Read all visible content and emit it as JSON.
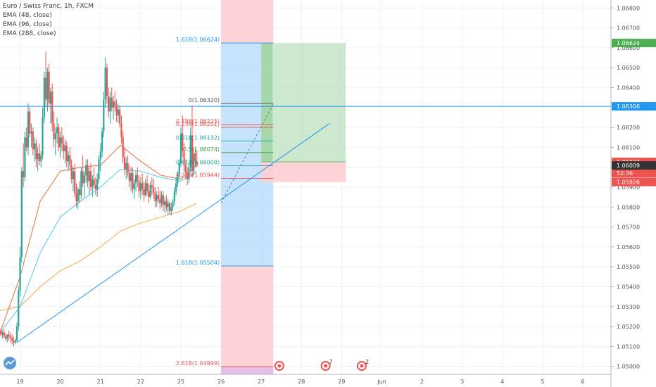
{
  "legend": {
    "symbol": "Euro / Swiss Franc, 1h, FXCM",
    "ema1": "EMA (48, close)",
    "ema2": "EMA (96, close)",
    "ema3": "EMA (288, close)"
  },
  "colors": {
    "up": "#26a69a",
    "down": "#ef5350",
    "ema48": "#f26b38",
    "ema96": "#4dd0e1",
    "ema288": "#f7a94b",
    "trend": "#2196f3",
    "fib_blue": "#bbdefb",
    "fib_red": "#ffcdd2",
    "green_zone": "#c8e6c9"
  },
  "chart_data": {
    "type": "candlestick",
    "title": "Euro / Swiss Franc, 1h, FXCM",
    "ylim": [
      1.0496,
      1.0684
    ],
    "x_range": [
      0,
      15.2
    ],
    "x_ticks": [
      {
        "x": 0.5,
        "label": "19"
      },
      {
        "x": 1.5,
        "label": "20"
      },
      {
        "x": 2.5,
        "label": "21"
      },
      {
        "x": 3.5,
        "label": "22"
      },
      {
        "x": 4.5,
        "label": "25"
      },
      {
        "x": 5.5,
        "label": "26"
      },
      {
        "x": 6.5,
        "label": "27"
      },
      {
        "x": 7.5,
        "label": "28"
      },
      {
        "x": 8.5,
        "label": "29"
      },
      {
        "x": 9.5,
        "label": "Jun"
      },
      {
        "x": 10.5,
        "label": "2"
      },
      {
        "x": 11.5,
        "label": "3"
      },
      {
        "x": 12.5,
        "label": "4"
      },
      {
        "x": 13.5,
        "label": "5"
      },
      {
        "x": 14.5,
        "label": "6"
      }
    ],
    "y_ticks": [
      "1.06800",
      "1.06700",
      "1.06600",
      "1.06500",
      "1.06400",
      "1.06200",
      "1.06100",
      "1.06000",
      "1.05900",
      "1.05800",
      "1.05700",
      "1.05600",
      "1.05500",
      "1.05400",
      "1.05300",
      "1.05200",
      "1.05100",
      "1.05000"
    ],
    "price_labels": [
      {
        "value": 1.06624,
        "label": "1.06624",
        "color": "#4caf50"
      },
      {
        "value": 1.06306,
        "label": "1.06306",
        "color": "#2196f3"
      },
      {
        "value": 1.06027,
        "label": "1.06027",
        "color": "#ef5350"
      },
      {
        "value": 1.0597,
        "label": "52:36",
        "color": "#ef5350"
      },
      {
        "value": 1.06009,
        "label": "1.06009",
        "color": "#333333"
      },
      {
        "value": 1.05926,
        "label": "1.05926",
        "color": "#ef5350"
      }
    ],
    "horizontal_line": 1.06306,
    "ohlc": [
      [
        0.02,
        1.0518,
        1.0519,
        1.0515,
        1.0516
      ],
      [
        0.06,
        1.0516,
        1.0518,
        1.0514,
        1.0517
      ],
      [
        0.1,
        1.0517,
        1.0519,
        1.0514,
        1.0515
      ],
      [
        0.14,
        1.0515,
        1.0517,
        1.0513,
        1.0514
      ],
      [
        0.18,
        1.0514,
        1.0516,
        1.0512,
        1.0516
      ],
      [
        0.22,
        1.0516,
        1.0518,
        1.0513,
        1.0515
      ],
      [
        0.26,
        1.0515,
        1.0517,
        1.0512,
        1.0514
      ],
      [
        0.3,
        1.0514,
        1.0516,
        1.0511,
        1.0513
      ],
      [
        0.34,
        1.0513,
        1.0515,
        1.051,
        1.0512
      ],
      [
        0.38,
        1.0512,
        1.0514,
        1.0511,
        1.0513
      ],
      [
        0.42,
        1.0513,
        1.0522,
        1.0512,
        1.052
      ],
      [
        0.46,
        1.052,
        1.054,
        1.0518,
        1.0538
      ],
      [
        0.5,
        1.0538,
        1.056,
        1.0535,
        1.0555
      ],
      [
        0.54,
        1.0555,
        1.06,
        1.0552,
        1.0598
      ],
      [
        0.58,
        1.0598,
        1.0612,
        1.059,
        1.0595
      ],
      [
        0.62,
        1.0595,
        1.0618,
        1.0593,
        1.0615
      ],
      [
        0.66,
        1.0615,
        1.062,
        1.0608,
        1.061
      ],
      [
        0.7,
        1.061,
        1.0632,
        1.0606,
        1.0628
      ],
      [
        0.74,
        1.0628,
        1.063,
        1.0615,
        1.0617
      ],
      [
        0.78,
        1.0617,
        1.0622,
        1.061,
        1.0618
      ],
      [
        0.82,
        1.0618,
        1.062,
        1.0606,
        1.0609
      ],
      [
        0.86,
        1.0609,
        1.0615,
        1.0603,
        1.0612
      ],
      [
        0.9,
        1.0612,
        1.0614,
        1.06,
        1.0604
      ],
      [
        0.94,
        1.0604,
        1.061,
        1.0598,
        1.0607
      ],
      [
        0.98,
        1.0607,
        1.0612,
        1.0601,
        1.0603
      ],
      [
        1.02,
        1.0603,
        1.0608,
        1.06,
        1.0606
      ],
      [
        1.06,
        1.0606,
        1.063,
        1.0604,
        1.0625
      ],
      [
        1.1,
        1.0625,
        1.0648,
        1.0622,
        1.0645
      ],
      [
        1.14,
        1.0645,
        1.0658,
        1.063,
        1.0634
      ],
      [
        1.18,
        1.0634,
        1.065,
        1.0628,
        1.0648
      ],
      [
        1.22,
        1.0648,
        1.0652,
        1.063,
        1.0632
      ],
      [
        1.26,
        1.0632,
        1.064,
        1.0622,
        1.0638
      ],
      [
        1.3,
        1.0638,
        1.0642,
        1.0618,
        1.0622
      ],
      [
        1.34,
        1.0622,
        1.0628,
        1.061,
        1.0614
      ],
      [
        1.38,
        1.0614,
        1.062,
        1.0606,
        1.0617
      ],
      [
        1.42,
        1.0617,
        1.0625,
        1.0612,
        1.062
      ],
      [
        1.46,
        1.062,
        1.0622,
        1.0608,
        1.061
      ],
      [
        1.5,
        1.061,
        1.0618,
        1.0605,
        1.0615
      ],
      [
        1.54,
        1.0615,
        1.062,
        1.0608,
        1.0612
      ],
      [
        1.58,
        1.0612,
        1.0616,
        1.0604,
        1.0608
      ],
      [
        1.62,
        1.0608,
        1.0614,
        1.0602,
        1.0611
      ],
      [
        1.66,
        1.0611,
        1.0613,
        1.06,
        1.0603
      ],
      [
        1.7,
        1.0603,
        1.0608,
        1.0598,
        1.0606
      ],
      [
        1.74,
        1.0606,
        1.061,
        1.0599,
        1.0601
      ],
      [
        1.78,
        1.0601,
        1.0604,
        1.0592,
        1.0594
      ],
      [
        1.82,
        1.0594,
        1.06,
        1.0588,
        1.0598
      ],
      [
        1.86,
        1.0598,
        1.0602,
        1.0585,
        1.0587
      ],
      [
        1.9,
        1.0587,
        1.0592,
        1.058,
        1.0583
      ],
      [
        1.94,
        1.0583,
        1.059,
        1.0579,
        1.0589
      ],
      [
        1.98,
        1.0589,
        1.0593,
        1.0582,
        1.0586
      ],
      [
        2.02,
        1.0586,
        1.06,
        1.0584,
        1.0598
      ],
      [
        2.06,
        1.0598,
        1.0606,
        1.059,
        1.0592
      ],
      [
        2.1,
        1.0592,
        1.0598,
        1.0585,
        1.0596
      ],
      [
        2.14,
        1.0596,
        1.0604,
        1.0592,
        1.0601
      ],
      [
        2.18,
        1.0601,
        1.0604,
        1.059,
        1.0593
      ],
      [
        2.22,
        1.0593,
        1.06,
        1.0586,
        1.0598
      ],
      [
        2.26,
        1.0598,
        1.0602,
        1.0588,
        1.059
      ],
      [
        2.3,
        1.059,
        1.0596,
        1.0585,
        1.0594
      ],
      [
        2.34,
        1.0594,
        1.06,
        1.0589,
        1.0591
      ],
      [
        2.38,
        1.0591,
        1.0595,
        1.0586,
        1.0589
      ],
      [
        2.42,
        1.0589,
        1.0597,
        1.0585,
        1.0594
      ],
      [
        2.46,
        1.0594,
        1.0606,
        1.0592,
        1.0604
      ],
      [
        2.5,
        1.0604,
        1.0612,
        1.0598,
        1.0608
      ],
      [
        2.54,
        1.0608,
        1.062,
        1.0605,
        1.0618
      ],
      [
        2.58,
        1.0618,
        1.0638,
        1.0615,
        1.0634
      ],
      [
        2.62,
        1.0634,
        1.0655,
        1.063,
        1.065
      ],
      [
        2.66,
        1.065,
        1.0652,
        1.0632,
        1.0636
      ],
      [
        2.7,
        1.0636,
        1.064,
        1.0625,
        1.0628
      ],
      [
        2.74,
        1.0628,
        1.0638,
        1.0622,
        1.0635
      ],
      [
        2.78,
        1.0635,
        1.064,
        1.0628,
        1.063
      ],
      [
        2.82,
        1.063,
        1.0636,
        1.0624,
        1.0633
      ],
      [
        2.86,
        1.0633,
        1.0638,
        1.0628,
        1.0631
      ],
      [
        2.9,
        1.0631,
        1.0634,
        1.0623,
        1.0626
      ],
      [
        2.94,
        1.0626,
        1.0632,
        1.0622,
        1.0629
      ],
      [
        2.98,
        1.0629,
        1.0631,
        1.062,
        1.0622
      ],
      [
        3.02,
        1.0622,
        1.0626,
        1.0612,
        1.0615
      ],
      [
        3.06,
        1.0615,
        1.0618,
        1.0602,
        1.0605
      ],
      [
        3.1,
        1.0605,
        1.061,
        1.0596,
        1.0599
      ],
      [
        3.14,
        1.0599,
        1.0605,
        1.0594,
        1.0602
      ],
      [
        3.18,
        1.0602,
        1.0606,
        1.0595,
        1.0597
      ],
      [
        3.22,
        1.0597,
        1.0601,
        1.059,
        1.0593
      ],
      [
        3.26,
        1.0593,
        1.06,
        1.0588,
        1.0597
      ],
      [
        3.3,
        1.0597,
        1.06,
        1.0587,
        1.0589
      ],
      [
        3.34,
        1.0589,
        1.0594,
        1.0584,
        1.0592
      ],
      [
        3.38,
        1.0592,
        1.0598,
        1.0588,
        1.0596
      ],
      [
        3.42,
        1.0596,
        1.06,
        1.059,
        1.0593
      ],
      [
        3.46,
        1.0593,
        1.0596,
        1.0585,
        1.0588
      ],
      [
        3.5,
        1.0588,
        1.0595,
        1.0584,
        1.0592
      ],
      [
        3.54,
        1.0592,
        1.0597,
        1.0586,
        1.0589
      ],
      [
        3.58,
        1.0589,
        1.0593,
        1.0583,
        1.0586
      ],
      [
        3.62,
        1.0586,
        1.0594,
        1.0585,
        1.0592
      ],
      [
        3.66,
        1.0592,
        1.0596,
        1.0586,
        1.0588
      ],
      [
        3.7,
        1.0588,
        1.0592,
        1.0582,
        1.0585
      ],
      [
        3.74,
        1.0585,
        1.0593,
        1.0584,
        1.0591
      ],
      [
        3.78,
        1.0591,
        1.0595,
        1.0586,
        1.059
      ],
      [
        3.82,
        1.059,
        1.0594,
        1.0584,
        1.0587
      ],
      [
        3.86,
        1.0587,
        1.059,
        1.058,
        1.0583
      ],
      [
        3.9,
        1.0583,
        1.0588,
        1.058,
        1.0586
      ],
      [
        3.94,
        1.0586,
        1.059,
        1.0582,
        1.0584
      ],
      [
        3.98,
        1.0584,
        1.0588,
        1.0579,
        1.0582
      ],
      [
        4.02,
        1.0582,
        1.0588,
        1.058,
        1.0586
      ],
      [
        4.06,
        1.0586,
        1.0588,
        1.0578,
        1.0581
      ],
      [
        4.1,
        1.0581,
        1.0585,
        1.0577,
        1.0583
      ],
      [
        4.14,
        1.0583,
        1.0586,
        1.0578,
        1.058
      ],
      [
        4.18,
        1.058,
        1.0584,
        1.0576,
        1.0582
      ],
      [
        4.22,
        1.0582,
        1.0583,
        1.0576,
        1.0578
      ],
      [
        4.26,
        1.0578,
        1.0582,
        1.0576,
        1.058
      ],
      [
        4.3,
        1.058,
        1.0584,
        1.0578,
        1.0583
      ],
      [
        4.34,
        1.0583,
        1.059,
        1.0581,
        1.0588
      ],
      [
        4.38,
        1.0588,
        1.0595,
        1.0586,
        1.0592
      ],
      [
        4.42,
        1.0592,
        1.0598,
        1.059,
        1.0596
      ],
      [
        4.46,
        1.0596,
        1.0604,
        1.0594,
        1.0602
      ],
      [
        4.5,
        1.0602,
        1.062,
        1.06,
        1.0617
      ],
      [
        4.54,
        1.0617,
        1.0626,
        1.0605,
        1.0608
      ],
      [
        4.58,
        1.0608,
        1.0612,
        1.0598,
        1.0601
      ],
      [
        4.62,
        1.0601,
        1.0604,
        1.0594,
        1.0597
      ],
      [
        4.66,
        1.0597,
        1.06,
        1.0591,
        1.0594
      ],
      [
        4.7,
        1.0594,
        1.0602,
        1.0592,
        1.06
      ],
      [
        4.74,
        1.06,
        1.062,
        1.0598,
        1.0616
      ],
      [
        4.78,
        1.0616,
        1.0631,
        1.0595,
        1.0598
      ],
      [
        4.82,
        1.0598,
        1.061,
        1.0596,
        1.0607
      ],
      [
        4.86,
        1.0607,
        1.0609,
        1.06,
        1.0603
      ],
      [
        4.9,
        1.0603,
        1.0608,
        1.06,
        1.0601
      ]
    ],
    "ema48": [
      [
        0.0,
        1.0517
      ],
      [
        0.5,
        1.0545
      ],
      [
        1.0,
        1.0583
      ],
      [
        1.5,
        1.0598
      ],
      [
        2.0,
        1.06
      ],
      [
        2.5,
        1.0601
      ],
      [
        3.0,
        1.0611
      ],
      [
        3.5,
        1.0603
      ],
      [
        4.0,
        1.0596
      ],
      [
        4.5,
        1.0594
      ],
      [
        4.9,
        1.0601
      ]
    ],
    "ema96": [
      [
        0.0,
        1.0517
      ],
      [
        0.5,
        1.053
      ],
      [
        1.0,
        1.0557
      ],
      [
        1.5,
        1.0575
      ],
      [
        2.0,
        1.0583
      ],
      [
        2.5,
        1.059
      ],
      [
        3.0,
        1.0599
      ],
      [
        3.5,
        1.0598
      ],
      [
        4.0,
        1.0595
      ],
      [
        4.5,
        1.0593
      ],
      [
        4.9,
        1.0598
      ]
    ],
    "ema288": [
      [
        0.0,
        1.0528
      ],
      [
        0.5,
        1.053
      ],
      [
        1.0,
        1.054
      ],
      [
        1.5,
        1.0548
      ],
      [
        2.0,
        1.0553
      ],
      [
        2.5,
        1.056
      ],
      [
        3.0,
        1.0568
      ],
      [
        3.5,
        1.0572
      ],
      [
        4.0,
        1.0575
      ],
      [
        4.5,
        1.0578
      ],
      [
        4.9,
        1.0582
      ]
    ],
    "trendline": [
      [
        0.42,
        1.0512
      ],
      [
        8.2,
        1.0622
      ]
    ],
    "dashed_line": [
      [
        5.5,
        1.0582
      ],
      [
        6.8,
        1.0632
      ]
    ],
    "long_position": {
      "x0": 6.5,
      "x1": 8.6,
      "entry": 1.06027,
      "target": 1.06624,
      "stop": 1.05926
    },
    "fib_zone": {
      "x0": 5.5,
      "x1": 6.8
    },
    "fib_blue_zone": [
      1.05504,
      1.06624
    ],
    "fib_red_upper": [
      1.06624,
      1.0684
    ],
    "fib_red_lower": [
      1.0496,
      1.05504
    ],
    "fib_levels": [
      {
        "label": "1.618(1.06624)",
        "value": 1.06624,
        "color": "#2196f3"
      },
      {
        "label": "0(1.06320)",
        "value": 1.0632,
        "color": "#555555"
      },
      {
        "label": "0.786(1.06215)",
        "value": 1.06215,
        "color": "#ef5350"
      },
      {
        "label": "0.236(1.06201)",
        "value": 1.06201,
        "color": "#ef5350"
      },
      {
        "label": "0.618(1.06132)",
        "value": 1.06132,
        "color": "#26a69a"
      },
      {
        "label": "0.5(1.06074)",
        "value": 1.06074,
        "color": "#43a047"
      },
      {
        "label": "0.618(1.06008)",
        "value": 1.06008,
        "color": "#26a69a"
      },
      {
        "label": "0.236(1.05944)",
        "value": 1.05944,
        "color": "#ef5350"
      },
      {
        "label": "1.618(1.05504)",
        "value": 1.05504,
        "color": "#2196f3"
      },
      {
        "label": "2.618(1.04999)",
        "value": 1.04999,
        "color": "#ef5350"
      }
    ],
    "badges": [
      {
        "x": 6.95,
        "label": "",
        "color": "#ef5350"
      },
      {
        "x": 8.1,
        "label": "7",
        "color": "#ef5350"
      },
      {
        "x": 9.0,
        "label": "2",
        "color": "#ef5350"
      }
    ]
  }
}
